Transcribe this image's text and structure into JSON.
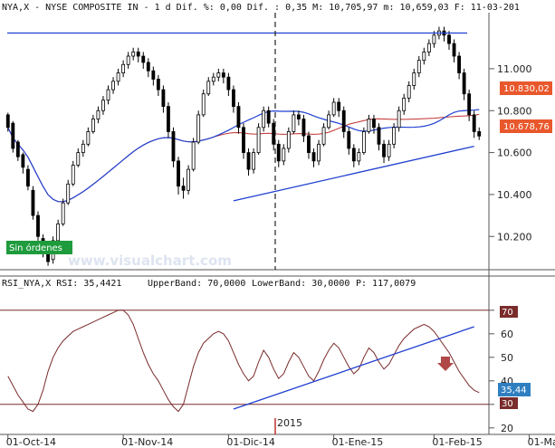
{
  "header": {
    "title": "NYA,X - NYSE COMPOSITE IN - 1 d Dif. %: 0,00 Dif. : 0,35 M: 10,705,97 m: 10,659,03 F: 11-03-201"
  },
  "rsi_header": {
    "prefix": "RSI_NYA,X RSI: 35,4421",
    "upper": "UpperBand: 70,0000",
    "lower": "LowerBand: 30,0000",
    "p_label": "P: 117,0079"
  },
  "watermark": "www.visualchart.com",
  "sin_ordenes_label": "Sin órdenes",
  "year_label": "2015",
  "colors": {
    "up": "#ffffff",
    "down": "#000000",
    "ma_blue": "#1f3fd0",
    "ma_red": "#c03030",
    "trend_blue": "#1f3fd0",
    "rsi_line": "#7a2b2b",
    "band_line": "#7a2b2b",
    "price_box": "#e8582c",
    "rsi_box": "#2f7fc0",
    "band_box": "#7a2b2b",
    "green_box": "#1e9b3c",
    "arrow": "#b04848"
  },
  "chart_data": [
    {
      "type": "candlestick",
      "title": "NYA,X - NYSE COMPOSITE IN",
      "ylim": [
        10050,
        11250
      ],
      "price_ticks": [
        "11.000",
        "10.800",
        "10.600",
        "10.400",
        "10.200"
      ],
      "price_tick_values": [
        11000,
        10800,
        10600,
        10400,
        10200
      ],
      "x_labels": [
        "01-Oct-14",
        "01-Nov-14",
        "01-Dic-14",
        "01-Ene-15",
        "01-Feb-15",
        "01-Mar-"
      ],
      "x_label_index": [
        0,
        23,
        44,
        65,
        85,
        104
      ],
      "last_price_labels": [
        "10.830,02",
        "10.678,76"
      ],
      "candles": [
        [
          10780,
          10720,
          10790,
          10700
        ],
        [
          10740,
          10620,
          10750,
          10600
        ],
        [
          10650,
          10580,
          10660,
          10560
        ],
        [
          10590,
          10530,
          10600,
          10500
        ],
        [
          10520,
          10440,
          10540,
          10420
        ],
        [
          10420,
          10300,
          10440,
          10280
        ],
        [
          10300,
          10200,
          10320,
          10180
        ],
        [
          10190,
          10120,
          10210,
          10100
        ],
        [
          10120,
          10080,
          10150,
          10060
        ],
        [
          10090,
          10180,
          10200,
          10070
        ],
        [
          10180,
          10260,
          10280,
          10170
        ],
        [
          10260,
          10360,
          10380,
          10250
        ],
        [
          10360,
          10450,
          10470,
          10350
        ],
        [
          10450,
          10540,
          10560,
          10440
        ],
        [
          10540,
          10600,
          10620,
          10530
        ],
        [
          10600,
          10640,
          10660,
          10580
        ],
        [
          10640,
          10700,
          10720,
          10630
        ],
        [
          10700,
          10760,
          10780,
          10690
        ],
        [
          10760,
          10800,
          10820,
          10740
        ],
        [
          10800,
          10850,
          10870,
          10780
        ],
        [
          10850,
          10900,
          10920,
          10830
        ],
        [
          10900,
          10940,
          10960,
          10880
        ],
        [
          10940,
          10980,
          11000,
          10920
        ],
        [
          10980,
          11020,
          11040,
          10960
        ],
        [
          11020,
          11060,
          11080,
          11000
        ],
        [
          11060,
          11080,
          11100,
          11040
        ],
        [
          11080,
          11060,
          11100,
          11030
        ],
        [
          11060,
          11030,
          11080,
          11000
        ],
        [
          11030,
          10990,
          11050,
          10960
        ],
        [
          10990,
          10950,
          11010,
          10920
        ],
        [
          10950,
          10900,
          10970,
          10870
        ],
        [
          10900,
          10820,
          10920,
          10790
        ],
        [
          10820,
          10700,
          10840,
          10670
        ],
        [
          10700,
          10560,
          10720,
          10530
        ],
        [
          10560,
          10440,
          10580,
          10400
        ],
        [
          10440,
          10420,
          10480,
          10380
        ],
        [
          10420,
          10520,
          10540,
          10400
        ],
        [
          10520,
          10650,
          10670,
          10510
        ],
        [
          10650,
          10780,
          10800,
          10640
        ],
        [
          10780,
          10880,
          10900,
          10770
        ],
        [
          10880,
          10940,
          10960,
          10870
        ],
        [
          10940,
          10960,
          10980,
          10920
        ],
        [
          10960,
          10980,
          11000,
          10940
        ],
        [
          10980,
          10960,
          11000,
          10930
        ],
        [
          10960,
          10900,
          10980,
          10870
        ],
        [
          10900,
          10820,
          10920,
          10790
        ],
        [
          10820,
          10720,
          10840,
          10690
        ],
        [
          10720,
          10600,
          10740,
          10570
        ],
        [
          10600,
          10520,
          10620,
          10490
        ],
        [
          10520,
          10600,
          10620,
          10500
        ],
        [
          10600,
          10720,
          10740,
          10590
        ],
        [
          10720,
          10800,
          10820,
          10700
        ],
        [
          10800,
          10740,
          10820,
          10720
        ],
        [
          10740,
          10640,
          10760,
          10610
        ],
        [
          10640,
          10560,
          10660,
          10530
        ],
        [
          10560,
          10620,
          10640,
          10540
        ],
        [
          10620,
          10700,
          10720,
          10600
        ],
        [
          10700,
          10780,
          10800,
          10690
        ],
        [
          10780,
          10760,
          10800,
          10730
        ],
        [
          10760,
          10680,
          10780,
          10650
        ],
        [
          10680,
          10600,
          10700,
          10570
        ],
        [
          10600,
          10560,
          10620,
          10530
        ],
        [
          10560,
          10640,
          10660,
          10540
        ],
        [
          10640,
          10720,
          10740,
          10630
        ],
        [
          10720,
          10780,
          10800,
          10710
        ],
        [
          10780,
          10840,
          10860,
          10770
        ],
        [
          10840,
          10800,
          10860,
          10770
        ],
        [
          10800,
          10700,
          10820,
          10670
        ],
        [
          10700,
          10620,
          10720,
          10590
        ],
        [
          10620,
          10560,
          10640,
          10530
        ],
        [
          10560,
          10600,
          10620,
          10540
        ],
        [
          10600,
          10700,
          10720,
          10590
        ],
        [
          10700,
          10760,
          10780,
          10690
        ],
        [
          10760,
          10720,
          10780,
          10690
        ],
        [
          10720,
          10640,
          10740,
          10610
        ],
        [
          10640,
          10580,
          10660,
          10550
        ],
        [
          10580,
          10640,
          10660,
          10560
        ],
        [
          10640,
          10720,
          10740,
          10620
        ],
        [
          10720,
          10800,
          10820,
          10700
        ],
        [
          10800,
          10860,
          10880,
          10780
        ],
        [
          10860,
          10920,
          10940,
          10840
        ],
        [
          10920,
          10980,
          11000,
          10900
        ],
        [
          10980,
          11040,
          11060,
          10960
        ],
        [
          11040,
          11080,
          11100,
          11020
        ],
        [
          11080,
          11120,
          11140,
          11060
        ],
        [
          11120,
          11160,
          11180,
          11100
        ],
        [
          11160,
          11180,
          11200,
          11140
        ],
        [
          11180,
          11160,
          11200,
          11130
        ],
        [
          11160,
          11120,
          11180,
          11090
        ],
        [
          11120,
          11060,
          11140,
          11030
        ],
        [
          11060,
          10980,
          11080,
          10950
        ],
        [
          10980,
          10880,
          11000,
          10850
        ],
        [
          10880,
          10780,
          10900,
          10750
        ],
        [
          10780,
          10700,
          10800,
          10670
        ],
        [
          10700,
          10679,
          10720,
          10660
        ]
      ]
    },
    {
      "type": "line",
      "title": "RSI_NYA,X RSI",
      "ylim": [
        20,
        80
      ],
      "rsi_ticks": [
        "70",
        "60",
        "50",
        "40",
        "30",
        "20"
      ],
      "rsi_tick_values": [
        70,
        60,
        50,
        40,
        30,
        20
      ],
      "upper_band": 70,
      "lower_band": 30,
      "current_label": "35,44",
      "series": [
        {
          "values": [
            42,
            38,
            34,
            31,
            28,
            27,
            30,
            36,
            44,
            50,
            54,
            57,
            59,
            61,
            62,
            63,
            64,
            65,
            66,
            67,
            68,
            69,
            70,
            70,
            68,
            64,
            58,
            52,
            47,
            43,
            40,
            36,
            32,
            29,
            27,
            30,
            38,
            46,
            52,
            56,
            58,
            60,
            61,
            60,
            57,
            52,
            47,
            43,
            40,
            42,
            48,
            53,
            50,
            45,
            41,
            43,
            48,
            52,
            50,
            46,
            42,
            40,
            44,
            49,
            53,
            56,
            54,
            50,
            46,
            43,
            45,
            50,
            54,
            52,
            48,
            45,
            47,
            51,
            55,
            58,
            60,
            62,
            63,
            64,
            63,
            61,
            58,
            55,
            52,
            48,
            44,
            41,
            38,
            36,
            35
          ]
        }
      ]
    }
  ]
}
